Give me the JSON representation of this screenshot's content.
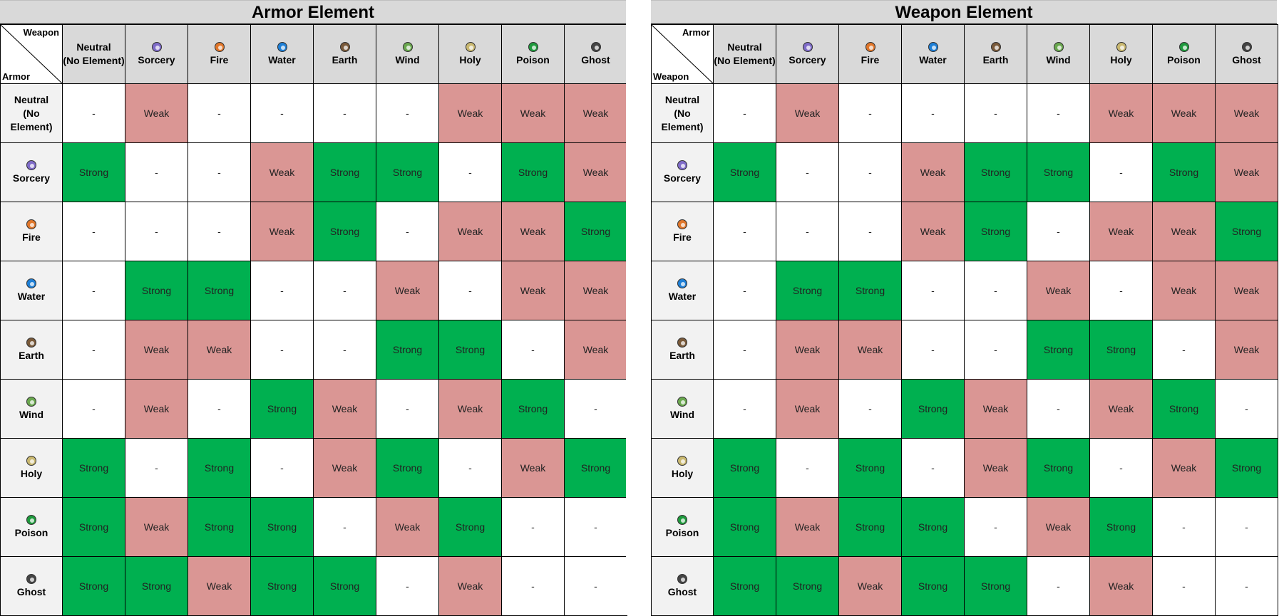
{
  "left": {
    "title": "Armor Element",
    "corner_top": "Weapon",
    "corner_bottom": "Armor",
    "columns": [
      {
        "label": "Neutral\n(No Element)",
        "icon": "neutral",
        "color": ""
      },
      {
        "label": "Sorcery",
        "icon": "sorcery-icon",
        "color": "#7f6cc9"
      },
      {
        "label": "Fire",
        "icon": "fire-icon",
        "color": "#e0762a"
      },
      {
        "label": "Water",
        "icon": "water-icon",
        "color": "#1e7fd6"
      },
      {
        "label": "Earth",
        "icon": "earth-icon",
        "color": "#7a5a3a"
      },
      {
        "label": "Wind",
        "icon": "wind-icon",
        "color": "#6aa84f"
      },
      {
        "label": "Holy",
        "icon": "holy-icon",
        "color": "#c9b870"
      },
      {
        "label": "Poison",
        "icon": "poison-icon",
        "color": "#1e9a3c"
      },
      {
        "label": "Ghost",
        "icon": "ghost-icon",
        "color": "#444444"
      }
    ],
    "rows": [
      {
        "label": "Neutral\n(No Element)",
        "icon": "neutral",
        "color": "",
        "cells": [
          "-",
          "Weak",
          "-",
          "-",
          "-",
          "-",
          "Weak",
          "Weak",
          "Weak"
        ]
      },
      {
        "label": "Sorcery",
        "icon": "sorcery-icon",
        "color": "#7f6cc9",
        "cells": [
          "Strong",
          "-",
          "-",
          "Weak",
          "Strong",
          "Strong",
          "-",
          "Strong",
          "Weak"
        ]
      },
      {
        "label": "Fire",
        "icon": "fire-icon",
        "color": "#e0762a",
        "cells": [
          "-",
          "-",
          "-",
          "Weak",
          "Strong",
          "-",
          "Weak",
          "Weak",
          "Strong"
        ]
      },
      {
        "label": "Water",
        "icon": "water-icon",
        "color": "#1e7fd6",
        "cells": [
          "-",
          "Strong",
          "Strong",
          "-",
          "-",
          "Weak",
          "-",
          "Weak",
          "Weak"
        ]
      },
      {
        "label": "Earth",
        "icon": "earth-icon",
        "color": "#7a5a3a",
        "cells": [
          "-",
          "Weak",
          "Weak",
          "-",
          "-",
          "Strong",
          "Strong",
          "-",
          "Weak"
        ]
      },
      {
        "label": "Wind",
        "icon": "wind-icon",
        "color": "#6aa84f",
        "cells": [
          "-",
          "Weak",
          "-",
          "Strong",
          "Weak",
          "-",
          "Weak",
          "Strong",
          "-"
        ]
      },
      {
        "label": "Holy",
        "icon": "holy-icon",
        "color": "#c9b870",
        "cells": [
          "Strong",
          "-",
          "Strong",
          "-",
          "Weak",
          "Strong",
          "-",
          "Weak",
          "Strong"
        ]
      },
      {
        "label": "Poison",
        "icon": "poison-icon",
        "color": "#1e9a3c",
        "cells": [
          "Strong",
          "Weak",
          "Strong",
          "Strong",
          "-",
          "Weak",
          "Strong",
          "-",
          "-"
        ]
      },
      {
        "label": "Ghost",
        "icon": "ghost-icon",
        "color": "#444444",
        "cells": [
          "Strong",
          "Strong",
          "Weak",
          "Strong",
          "Strong",
          "-",
          "Weak",
          "-",
          "-"
        ]
      }
    ]
  },
  "right": {
    "title": "Weapon Element",
    "corner_top": "Armor",
    "corner_bottom": "Weapon",
    "columns": [
      {
        "label": "Neutral\n(No Element)",
        "icon": "neutral",
        "color": ""
      },
      {
        "label": "Sorcery",
        "icon": "sorcery-icon",
        "color": "#7f6cc9"
      },
      {
        "label": "Fire",
        "icon": "fire-icon",
        "color": "#e0762a"
      },
      {
        "label": "Water",
        "icon": "water-icon",
        "color": "#1e7fd6"
      },
      {
        "label": "Earth",
        "icon": "earth-icon",
        "color": "#7a5a3a"
      },
      {
        "label": "Wind",
        "icon": "wind-icon",
        "color": "#6aa84f"
      },
      {
        "label": "Holy",
        "icon": "holy-icon",
        "color": "#c9b870"
      },
      {
        "label": "Poison",
        "icon": "poison-icon",
        "color": "#1e9a3c"
      },
      {
        "label": "Ghost",
        "icon": "ghost-icon",
        "color": "#444444"
      }
    ],
    "rows": [
      {
        "label": "Neutral\n(No Element)",
        "icon": "neutral",
        "color": "",
        "cells": [
          "-",
          "Weak",
          "-",
          "-",
          "-",
          "-",
          "Weak",
          "Weak",
          "Weak"
        ]
      },
      {
        "label": "Sorcery",
        "icon": "sorcery-icon",
        "color": "#7f6cc9",
        "cells": [
          "Strong",
          "-",
          "-",
          "Weak",
          "Strong",
          "Strong",
          "-",
          "Strong",
          "Weak"
        ]
      },
      {
        "label": "Fire",
        "icon": "fire-icon",
        "color": "#e0762a",
        "cells": [
          "-",
          "-",
          "-",
          "Weak",
          "Strong",
          "-",
          "Weak",
          "Weak",
          "Strong"
        ]
      },
      {
        "label": "Water",
        "icon": "water-icon",
        "color": "#1e7fd6",
        "cells": [
          "-",
          "Strong",
          "Strong",
          "-",
          "-",
          "Weak",
          "-",
          "Weak",
          "Weak"
        ]
      },
      {
        "label": "Earth",
        "icon": "earth-icon",
        "color": "#7a5a3a",
        "cells": [
          "-",
          "Weak",
          "Weak",
          "-",
          "-",
          "Strong",
          "Strong",
          "-",
          "Weak"
        ]
      },
      {
        "label": "Wind",
        "icon": "wind-icon",
        "color": "#6aa84f",
        "cells": [
          "-",
          "Weak",
          "-",
          "Strong",
          "Weak",
          "-",
          "Weak",
          "Strong",
          "-"
        ]
      },
      {
        "label": "Holy",
        "icon": "holy-icon",
        "color": "#c9b870",
        "cells": [
          "Strong",
          "-",
          "Strong",
          "-",
          "Weak",
          "Strong",
          "-",
          "Weak",
          "Strong"
        ]
      },
      {
        "label": "Poison",
        "icon": "poison-icon",
        "color": "#1e9a3c",
        "cells": [
          "Strong",
          "Weak",
          "Strong",
          "Strong",
          "-",
          "Weak",
          "Strong",
          "-",
          "-"
        ]
      },
      {
        "label": "Ghost",
        "icon": "ghost-icon",
        "color": "#444444",
        "cells": [
          "Strong",
          "Strong",
          "Weak",
          "Strong",
          "Strong",
          "-",
          "Weak",
          "-",
          "-"
        ]
      }
    ]
  },
  "colors": {
    "weak": "#da9694",
    "strong": "#00b050",
    "neutral": "#ffffff",
    "header": "#d9d9d9",
    "row_header": "#f2f2f2"
  }
}
